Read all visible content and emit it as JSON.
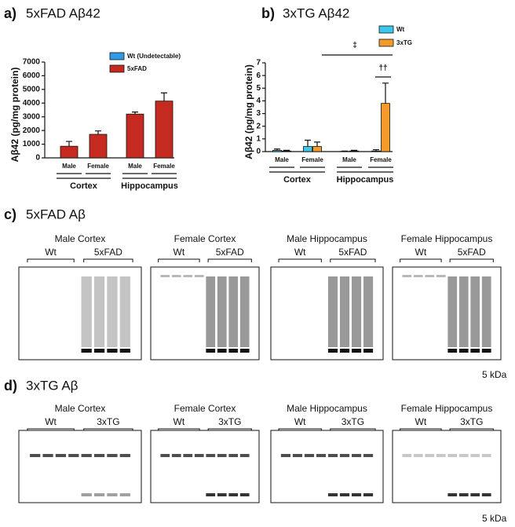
{
  "chart_data": [
    {
      "type": "bar",
      "panel_label": "a)",
      "title": "5xFAD Aβ42",
      "y_label": "Aβ42 (pg/mg protein)",
      "categories": [
        "Male",
        "Female",
        "Male",
        "Female"
      ],
      "group_labels": [
        "Cortex",
        "Hippocampus"
      ],
      "series": [
        {
          "name": "Wt (Undetectable)",
          "color": "#2f9be6",
          "values": [
            null,
            null,
            null,
            null
          ]
        },
        {
          "name": "5xFAD",
          "color": "#c42a1f",
          "values": [
            850,
            1720,
            3200,
            4150
          ],
          "errors": [
            350,
            250,
            150,
            600
          ]
        }
      ],
      "ylim": [
        0,
        7000
      ],
      "yticks": [
        0,
        1000,
        2000,
        3000,
        4000,
        5000,
        6000,
        7000
      ]
    },
    {
      "type": "bar",
      "panel_label": "b)",
      "title": "3xTG Aβ42",
      "y_label": "Aβ42 (pg/mg protein)",
      "categories": [
        "Male",
        "Female",
        "Male",
        "Female"
      ],
      "group_labels": [
        "Cortex",
        "Hippocampus"
      ],
      "series": [
        {
          "name": "Wt",
          "color": "#3cc8ea",
          "values": [
            0.1,
            0.4,
            0.02,
            0.05
          ],
          "errors": [
            0.1,
            0.5,
            0.02,
            0.1
          ]
        },
        {
          "name": "3xTG",
          "color": "#f39a2a",
          "values": [
            0.05,
            0.4,
            0.05,
            3.8
          ],
          "errors": [
            0.05,
            0.35,
            0.05,
            1.6
          ]
        }
      ],
      "annotations": [
        "‡",
        "††"
      ],
      "ylim": [
        0,
        7
      ],
      "yticks": [
        0,
        1,
        2,
        3,
        4,
        5,
        6,
        7
      ]
    }
  ],
  "blots": [
    {
      "label": "c)",
      "title": "5xFAD Aβ",
      "marker": "5 kDa",
      "panels": [
        {
          "title": "Male Cortex",
          "lanes": [
            "Wt",
            "5xFAD"
          ]
        },
        {
          "title": "Female Cortex",
          "lanes": [
            "Wt",
            "5xFAD"
          ]
        },
        {
          "title": "Male Hippocampus",
          "lanes": [
            "Wt",
            "5xFAD"
          ]
        },
        {
          "title": "Female Hippocampus",
          "lanes": [
            "Wt",
            "5xFAD"
          ]
        }
      ]
    },
    {
      "label": "d)",
      "title": "3xTG Aβ",
      "marker": "5 kDa",
      "panels": [
        {
          "title": "Male Cortex",
          "lanes": [
            "Wt",
            "3xTG"
          ]
        },
        {
          "title": "Female Cortex",
          "lanes": [
            "Wt",
            "3xTG"
          ]
        },
        {
          "title": "Male Hippocampus",
          "lanes": [
            "Wt",
            "3xTG"
          ]
        },
        {
          "title": "Female Hippocampus",
          "lanes": [
            "Wt",
            "3xTG"
          ]
        }
      ]
    }
  ]
}
